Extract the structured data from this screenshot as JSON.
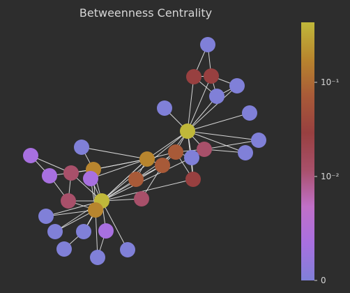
{
  "title": "Betweenness Centrality",
  "colorbar": {
    "scale": "symlog",
    "ticks": [
      {
        "label": "10⁻¹",
        "value": 0.1
      },
      {
        "label": "10⁻²",
        "value": 0.01
      },
      {
        "label": "0",
        "value": 0
      }
    ],
    "stops": [
      "#8080d8",
      "#a870e0",
      "#c070c8",
      "#a8506a",
      "#984040",
      "#a85a38",
      "#b8852e",
      "#c0b83a"
    ]
  },
  "colors": {
    "background": "#2d2d2d",
    "edge": "#e8e8e8",
    "text": "#d6d6d6",
    "low": "#8080d8",
    "purple": "#a870e0",
    "pink": "#c070c8",
    "rose": "#a8506a",
    "red": "#984040",
    "rust": "#a85a38",
    "orange": "#b8852e",
    "olive": "#c0b83a"
  }
}
